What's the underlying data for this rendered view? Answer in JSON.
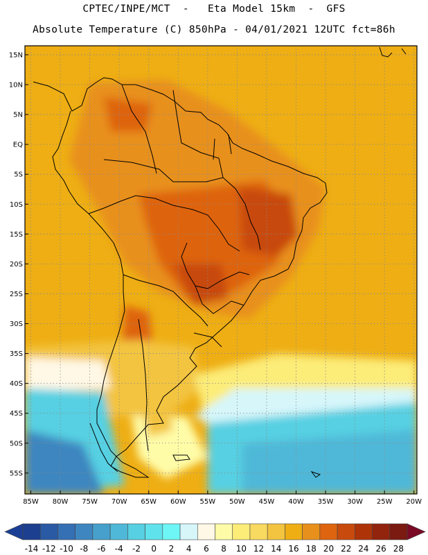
{
  "header": {
    "line1": "CPTEC/INPE/MCT  -   Eta Model 15km  -  GFS",
    "line2": "Absolute Temperature (C) 850hPa - 04/01/2021 12UTC fct=86h"
  },
  "map": {
    "lat_labels": [
      "15N",
      "10N",
      "5N",
      "EQ",
      "5S",
      "10S",
      "15S",
      "20S",
      "25S",
      "30S",
      "35S",
      "40S",
      "45S",
      "50S",
      "55S"
    ],
    "lon_labels": [
      "85W",
      "80W",
      "75W",
      "70W",
      "65W",
      "60W",
      "55W",
      "50W",
      "45W",
      "40W",
      "35W",
      "30W",
      "25W",
      "20W"
    ],
    "extent": {
      "lon_min": -86,
      "lon_max": -19.5,
      "lat_min": -58.5,
      "lat_max": 16.5
    },
    "gridlines": "dotted"
  },
  "colorbar": {
    "labels": [
      "-14",
      "-12",
      "-10",
      "-8",
      "-6",
      "-4",
      "-2",
      "0",
      "2",
      "4",
      "6",
      "8",
      "10",
      "12",
      "14",
      "16",
      "18",
      "20",
      "22",
      "24",
      "26",
      "28"
    ],
    "colors": [
      "#1c3f8f",
      "#2a5aa4",
      "#356fb4",
      "#3e86c0",
      "#47a0cc",
      "#4fb8d8",
      "#56d0e2",
      "#60e2ec",
      "#6ef6f6",
      "#d6f6fa",
      "#fff8e6",
      "#fffca8",
      "#fcec78",
      "#f8da60",
      "#f3c440",
      "#eeae14",
      "#e8901c",
      "#de6410",
      "#c84a0c",
      "#ae3408",
      "#92240e",
      "#7a1a10"
    ],
    "under_color": "#1a3f95",
    "over_color": "#7a0a26"
  }
}
